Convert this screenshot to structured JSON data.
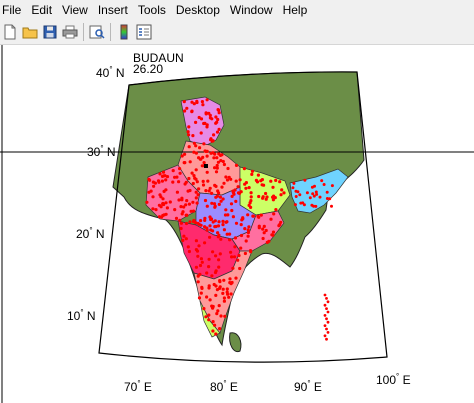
{
  "menu": {
    "items": [
      "File",
      "Edit",
      "View",
      "Insert",
      "Tools",
      "Desktop",
      "Window",
      "Help"
    ]
  },
  "toolbar": {
    "icons": [
      "new-file-icon",
      "open-folder-icon",
      "save-icon",
      "print-icon",
      "print-preview-icon",
      "colorbar-icon",
      "legend-icon"
    ]
  },
  "plot": {
    "datatip": {
      "name": "BUDAUN",
      "value": "26.20"
    },
    "lat_labels": [
      {
        "deg": "40",
        "hemi": "N"
      },
      {
        "deg": "30",
        "hemi": "N"
      },
      {
        "deg": "20",
        "hemi": "N"
      },
      {
        "deg": "10",
        "hemi": "N"
      }
    ],
    "lon_labels": [
      {
        "deg": "70",
        "hemi": "E"
      },
      {
        "deg": "80",
        "hemi": "E"
      },
      {
        "deg": "90",
        "hemi": "E"
      },
      {
        "deg": "100",
        "hemi": "E"
      }
    ],
    "colors": {
      "land": "#6b8e47",
      "sea": "#ffffff",
      "points": "#ff0000",
      "states": [
        "#ff6fa0",
        "#e68ae6",
        "#9b8cff",
        "#ccff66",
        "#ff9999",
        "#ff2a6d",
        "#6fd3ff",
        "#ffd1dc"
      ]
    }
  }
}
